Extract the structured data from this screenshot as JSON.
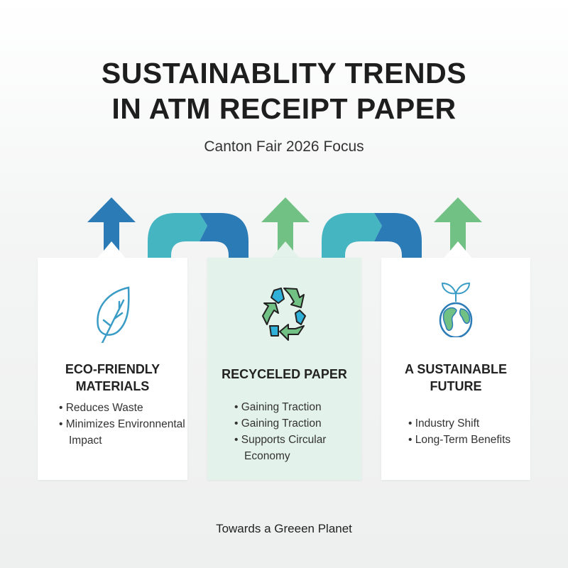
{
  "title_line1": "SUSTAINABLITY TRENDS",
  "title_line2": "IN ATM RECEIPT PAPER",
  "subtitle": "Canton Fair 2026 Focus",
  "footer": "Towards a Greeen Planet",
  "colors": {
    "blue": "#2b7bb6",
    "teal": "#45b5c2",
    "green": "#72c184",
    "mid_card": "#e3f2ea"
  },
  "cards": [
    {
      "icon": "leaf-icon",
      "heading": "ECO-FRIENDLY MATERIALS",
      "heading_lines": [
        "ECO-FRIENDLY",
        "MATERIALS"
      ],
      "bullets": [
        "Reduces Waste",
        "Minimizes Environnental Impact"
      ]
    },
    {
      "icon": "recycle-icon",
      "heading": "RECYCELED PAPER",
      "bullets": [
        "Gaining Traction",
        "Gaining Traction",
        "Supports Circular Economy"
      ]
    },
    {
      "icon": "globe-sprout-icon",
      "heading": "A SUSTAINABLE FUTURE",
      "heading_lines": [
        "A SUSTAINABLE",
        "FUTURE"
      ],
      "bullets": [
        "Industry Shift",
        "Long-Term Benefits"
      ]
    }
  ]
}
